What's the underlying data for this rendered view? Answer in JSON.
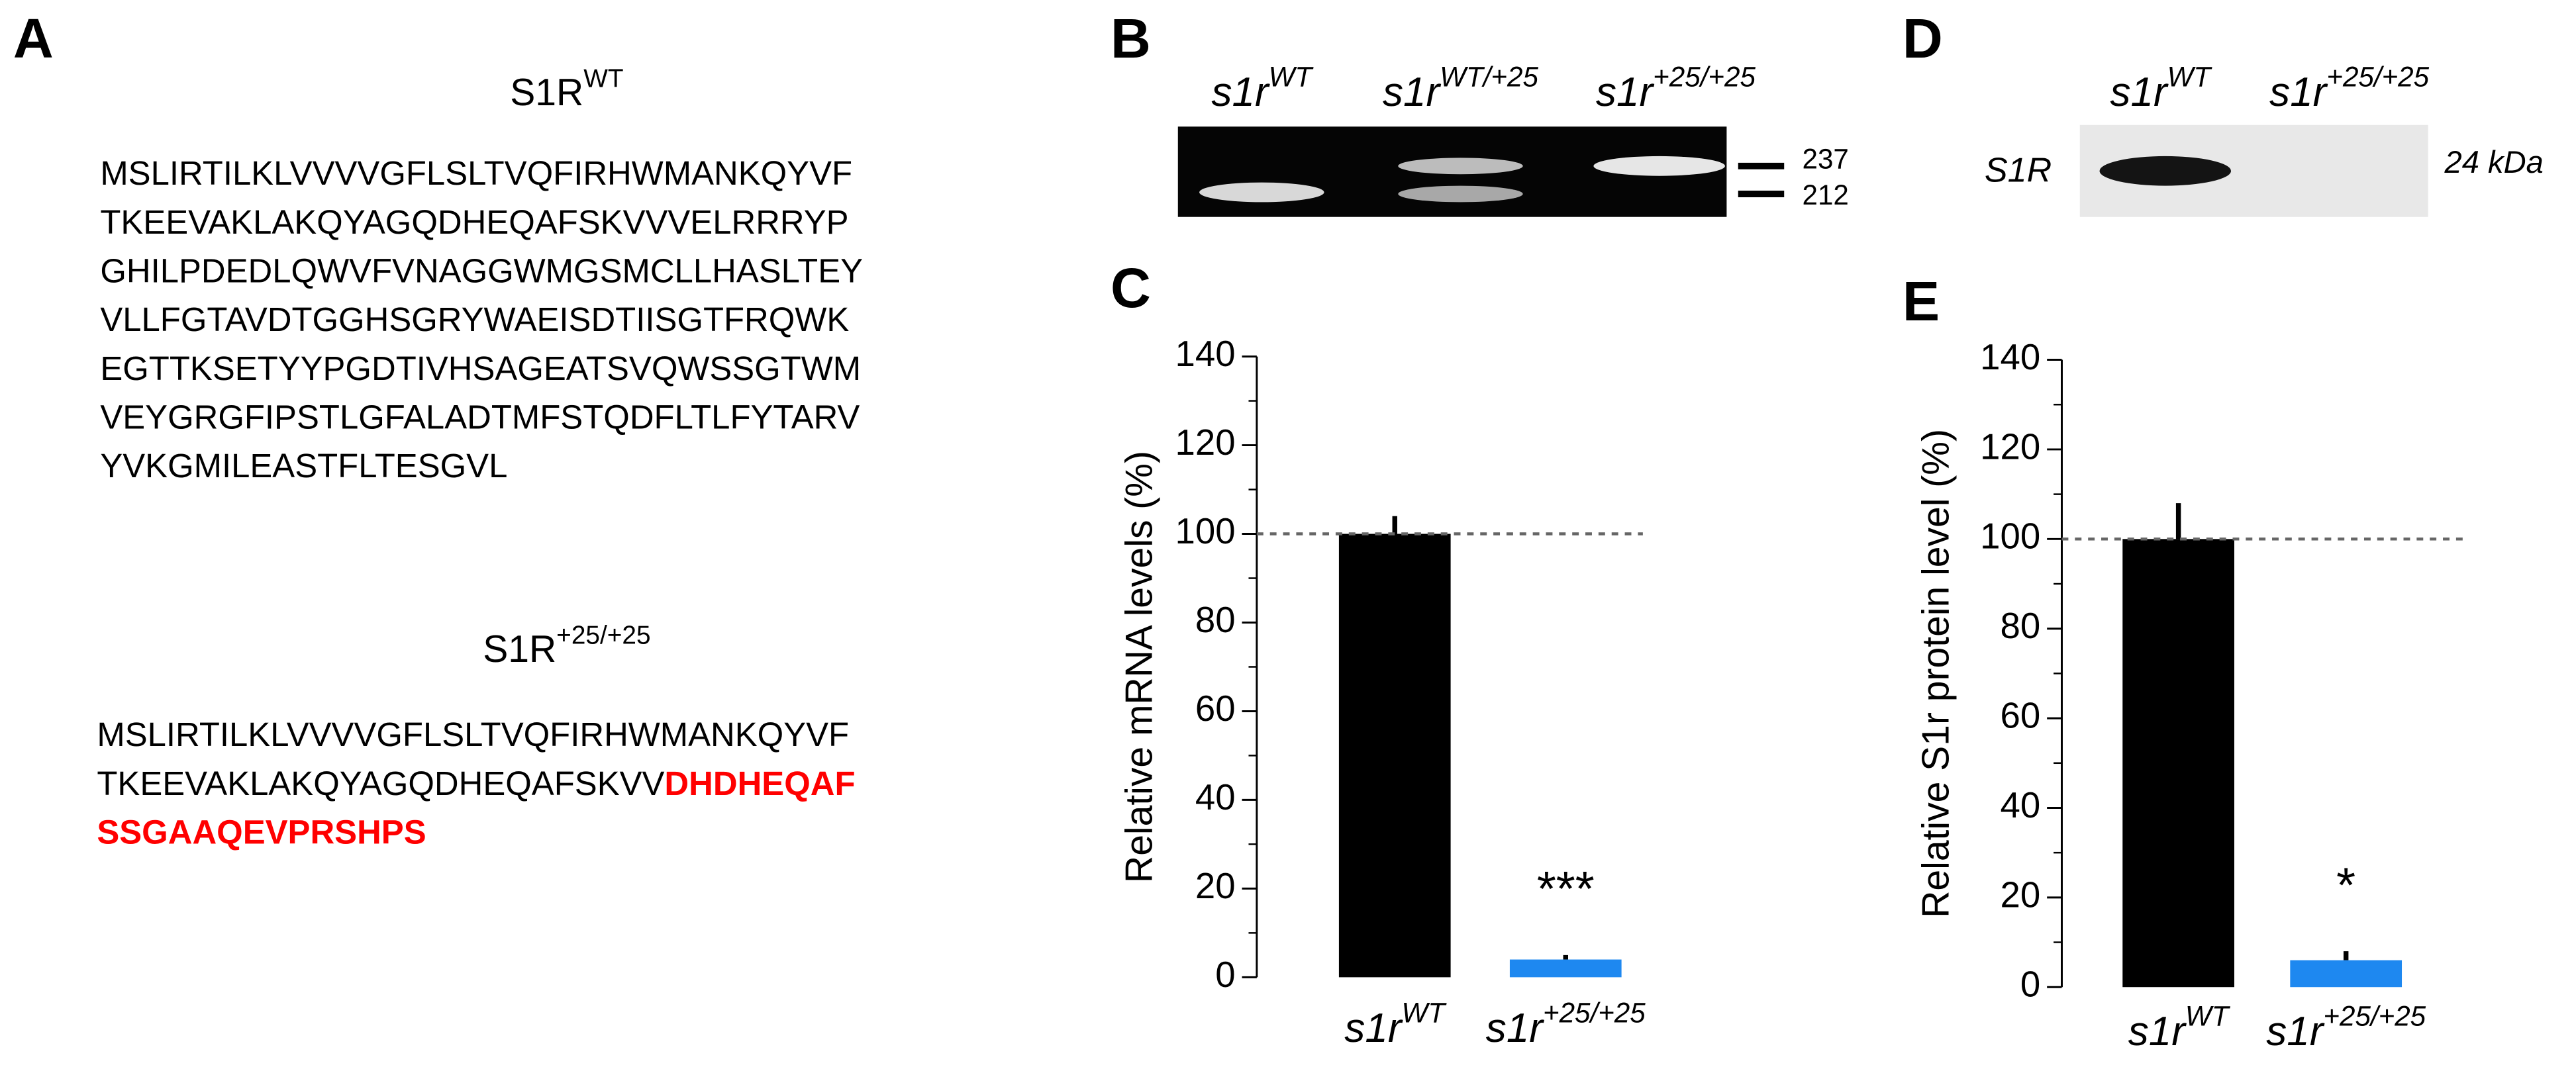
{
  "panel_a": {
    "label": "A",
    "wt": {
      "title": {
        "base": "S1R",
        "sup": "WT"
      },
      "lines": [
        "MSLIRTILKLVVVVGFLSLTVQFIRHWMANKQYVF",
        "TKEEVAKLAKQYAGQDHEQAFSKVVVELRRRYP",
        "GHILPDEDLQWVFVNAGGWMGSMCLLHASLTEY",
        "VLLFGTAVDTGGHSGRYWAEISDTIISGTFRQWK",
        "EGTTKSETYYPGDTIVHSAGEATSVQWSSGTWM",
        "VEYGRGFIPSTLGFALADTMFSTQDFLTLFYTARV",
        "YVKGMILEASTFLTESGVL"
      ]
    },
    "mutant": {
      "title": {
        "base": "S1R",
        "sup": "+25/+25"
      },
      "lines": [
        [
          {
            "text": "MSLIRTILKLVVVVGFLSLTVQFIRHWMANKQYVF",
            "color": "#000000"
          }
        ],
        [
          {
            "text": "TKEEVAKLAKQYAGQDHEQAFSKVV",
            "color": "#000000"
          },
          {
            "text": "DHDHEQAF",
            "color": "#ff0000"
          }
        ],
        [
          {
            "text": "SSGAAQEVPRSHPS",
            "color": "#ff0000"
          }
        ]
      ]
    }
  },
  "panel_b": {
    "label": "B",
    "lanes": [
      {
        "base": "s1r",
        "sup": "WT"
      },
      {
        "base": "s1r",
        "sup": "WT/+25"
      },
      {
        "base": "s1r",
        "sup": "+25/+25"
      }
    ],
    "markers": [
      237,
      212
    ]
  },
  "panel_d": {
    "label": "D",
    "lanes": [
      {
        "base": "s1r",
        "sup": "WT"
      },
      {
        "base": "s1r",
        "sup": "+25/+25"
      }
    ],
    "row_label": "S1R",
    "size_label": "24 kDa"
  },
  "chart_data": [
    {
      "type": "bar",
      "panel": "C",
      "ylabel": "Relative mRNA levels (%)",
      "categories": [
        {
          "base": "s1r",
          "sup": "WT"
        },
        {
          "base": "s1r",
          "sup": "+25/+25"
        }
      ],
      "values": [
        100,
        4
      ],
      "errors": [
        4,
        1
      ],
      "colors": [
        "#000000",
        "#1e88f0"
      ],
      "significance": [
        null,
        "***"
      ],
      "reference_line": 100,
      "ylim": [
        0,
        140
      ],
      "yticks": [
        0,
        20,
        40,
        60,
        80,
        100,
        120,
        140
      ],
      "minor_yticks": [
        10,
        30,
        50,
        70,
        90,
        110,
        130
      ]
    },
    {
      "type": "bar",
      "panel": "E",
      "ylabel": "Relative S1r protein level (%)",
      "categories": [
        {
          "base": "s1r",
          "sup": "WT"
        },
        {
          "base": "s1r",
          "sup": "+25/+25"
        }
      ],
      "values": [
        100,
        6
      ],
      "errors": [
        8,
        2
      ],
      "colors": [
        "#000000",
        "#1e88f0"
      ],
      "significance": [
        null,
        "*"
      ],
      "reference_line": 100,
      "ylim": [
        0,
        140
      ],
      "yticks": [
        0,
        20,
        40,
        60,
        80,
        100,
        120,
        140
      ],
      "minor_yticks": [
        10,
        30,
        50,
        70,
        90,
        110,
        130
      ]
    }
  ]
}
